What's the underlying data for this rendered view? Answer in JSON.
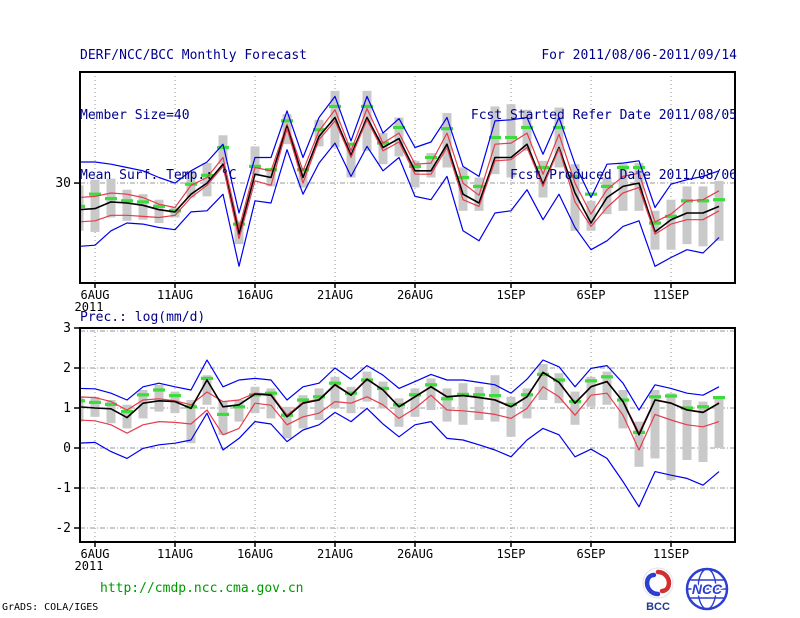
{
  "header": {
    "title": "DERF/NCC/BCC Monthly Forecast",
    "member_size": "Member Size=40",
    "temp_label": "Mean Surf. Temp.: °C",
    "for_period": "For 2011/08/06-2011/09/14",
    "fcst_started": "Fcst Started Refer Date 2011/08/05",
    "fcst_produced": "Fcst Produced Date 2011/08/06"
  },
  "footer": {
    "url": "http://cmdp.ncc.cma.gov.cn",
    "credit": "GrADS: COLA/IGES",
    "logos": [
      {
        "name": "bcc-logo",
        "text": "BCC"
      },
      {
        "name": "ncc-logo",
        "text": "NCC"
      }
    ]
  },
  "colors": {
    "blue": "#0000ee",
    "red": "#e73b4e",
    "black": "#000000",
    "green": "#3ddc3d",
    "bar": "#c9c9c9",
    "grid": "#999999",
    "frame": "#000000",
    "header_text": "#00008b",
    "url_text": "#009900",
    "logo_blue": "#2b3fd0",
    "logo_red": "#d03030"
  },
  "chart_data": [
    {
      "type": "line",
      "title": "Mean Surf. Temp.: °C",
      "ylim": [
        21,
        40
      ],
      "grid": true,
      "yticks": [
        {
          "v": 30,
          "label": "30"
        }
      ],
      "xticks": [
        {
          "d": 1,
          "label": "6AUG",
          "sub": "2011"
        },
        {
          "d": 6,
          "label": "11AUG"
        },
        {
          "d": 11,
          "label": "16AUG"
        },
        {
          "d": 16,
          "label": "21AUG"
        },
        {
          "d": 21,
          "label": "26AUG"
        },
        {
          "d": 27,
          "label": "1SEP"
        },
        {
          "d": 32,
          "label": "6SEP"
        },
        {
          "d": 37,
          "label": "11SEP"
        }
      ],
      "x_dates": [
        "5AUG",
        "6AUG",
        "7AUG",
        "8AUG",
        "9AUG",
        "10AUG",
        "11AUG",
        "12AUG",
        "13AUG",
        "14AUG",
        "15AUG",
        "16AUG",
        "17AUG",
        "18AUG",
        "19AUG",
        "20AUG",
        "21AUG",
        "22AUG",
        "23AUG",
        "24AUG",
        "25AUG",
        "26AUG",
        "27AUG",
        "28AUG",
        "29AUG",
        "30AUG",
        "31AUG",
        "1SEP",
        "2SEP",
        "3SEP",
        "4SEP",
        "5SEP",
        "6SEP",
        "7SEP",
        "8SEP",
        "9SEP",
        "10SEP",
        "11SEP",
        "12SEP",
        "13SEP",
        "14SEP"
      ],
      "series": [
        {
          "name": "envelope-max-blue",
          "color_key": "blue",
          "width": 1.2,
          "values": [
            31.9,
            31.9,
            31.7,
            31.4,
            31.1,
            30.5,
            30.0,
            31.1,
            31.9,
            33.5,
            27.3,
            32.3,
            32.3,
            36.5,
            32.3,
            35.9,
            37.8,
            33.8,
            37.8,
            34.5,
            35.8,
            33.2,
            33.7,
            35.9,
            31.5,
            30.6,
            35.6,
            35.7,
            35.9,
            32.6,
            35.9,
            31.7,
            28.7,
            31.7,
            31.8,
            32.0,
            27.8,
            29.9,
            30.3,
            30.6,
            31.1
          ]
        },
        {
          "name": "upper-spread-red",
          "color_key": "red",
          "width": 1.2,
          "values": [
            28.7,
            28.8,
            29.1,
            29.0,
            28.7,
            28.1,
            27.8,
            29.8,
            30.5,
            32.3,
            25.9,
            31.4,
            31.1,
            35.3,
            31.1,
            34.7,
            36.6,
            32.9,
            36.7,
            33.6,
            34.5,
            31.7,
            31.8,
            34.5,
            30.0,
            28.9,
            33.5,
            33.6,
            34.5,
            30.8,
            34.4,
            30.0,
            27.2,
            29.4,
            30.6,
            30.9,
            26.5,
            27.2,
            28.4,
            28.5,
            29.3
          ]
        },
        {
          "name": "ensemble-mean-black",
          "color_key": "black",
          "width": 1.6,
          "values": [
            27.6,
            27.7,
            28.3,
            28.2,
            28.0,
            27.6,
            27.4,
            29.0,
            30.0,
            31.7,
            25.4,
            30.8,
            30.5,
            35.1,
            30.5,
            34.2,
            35.9,
            32.5,
            35.9,
            33.2,
            34.0,
            31.1,
            31.1,
            33.5,
            29.0,
            28.2,
            32.3,
            32.3,
            33.5,
            29.9,
            33.2,
            29.1,
            26.4,
            28.7,
            29.7,
            30.0,
            25.6,
            26.7,
            27.3,
            27.3,
            27.9
          ]
        },
        {
          "name": "lower-spread-red",
          "color_key": "red",
          "width": 1.2,
          "values": [
            26.5,
            26.6,
            27.1,
            27.1,
            27.0,
            26.9,
            27.1,
            28.7,
            29.8,
            31.5,
            25.0,
            30.2,
            29.8,
            34.9,
            30.0,
            33.9,
            35.6,
            32.3,
            35.7,
            32.9,
            33.7,
            30.8,
            30.8,
            33.2,
            28.5,
            27.9,
            32.0,
            32.1,
            33.2,
            29.7,
            33.1,
            28.3,
            26.1,
            27.8,
            29.1,
            29.6,
            25.4,
            26.3,
            26.7,
            26.7,
            27.5
          ]
        },
        {
          "name": "envelope-min-blue",
          "color_key": "blue",
          "width": 1.2,
          "values": [
            24.3,
            24.4,
            25.7,
            26.4,
            26.3,
            26.0,
            25.8,
            27.4,
            27.5,
            29.0,
            22.5,
            28.4,
            28.2,
            33.0,
            29.0,
            31.8,
            33.6,
            30.6,
            33.3,
            31.1,
            32.3,
            28.8,
            28.5,
            30.6,
            25.7,
            24.8,
            27.3,
            27.5,
            29.4,
            26.7,
            29.0,
            26.0,
            24.0,
            24.8,
            26.1,
            26.6,
            22.5,
            23.3,
            24.0,
            23.7,
            25.1
          ]
        }
      ],
      "green_dash": {
        "name": "green-dash-overlay",
        "values": [
          27.9,
          29.0,
          28.6,
          28.4,
          28.3,
          27.9,
          27.5,
          29.9,
          30.7,
          33.2,
          26.3,
          31.5,
          31.2,
          35.6,
          31.2,
          34.8,
          36.9,
          33.5,
          36.9,
          33.6,
          35.0,
          31.5,
          32.3,
          34.9,
          30.5,
          29.7,
          34.1,
          34.1,
          35.0,
          31.4,
          35.0,
          30.6,
          29.0,
          29.7,
          31.4,
          31.4,
          26.4,
          27.0,
          28.4,
          28.4,
          28.5
        ]
      },
      "bars": {
        "top": [
          29.8,
          30.3,
          30.4,
          29.4,
          29.0,
          28.5,
          27.8,
          31.1,
          31.8,
          34.3,
          26.6,
          33.3,
          31.1,
          36.2,
          31.2,
          35.7,
          38.3,
          33.6,
          38.3,
          34.5,
          35.9,
          32.0,
          32.7,
          36.3,
          31.4,
          30.5,
          36.9,
          37.1,
          36.6,
          32.0,
          36.8,
          31.7,
          28.4,
          30.5,
          31.7,
          31.8,
          27.5,
          28.5,
          29.7,
          29.7,
          30.2
        ],
        "bot": [
          25.7,
          25.6,
          26.9,
          26.6,
          26.7,
          26.4,
          26.9,
          28.7,
          28.8,
          31.7,
          24.5,
          30.8,
          29.7,
          33.5,
          29.6,
          33.3,
          33.2,
          30.5,
          32.9,
          31.7,
          32.4,
          29.6,
          30.5,
          31.4,
          27.5,
          27.5,
          30.8,
          30.5,
          32.9,
          28.7,
          31.4,
          25.7,
          25.7,
          27.2,
          27.5,
          27.5,
          24.0,
          24.0,
          24.5,
          24.3,
          24.8
        ]
      }
    },
    {
      "type": "line",
      "title": "Prec.: log(mm/d)",
      "ylim": [
        -2.35,
        3
      ],
      "grid": true,
      "yticks": [
        {
          "v": 3,
          "label": "3"
        },
        {
          "v": 2,
          "label": "2"
        },
        {
          "v": 1,
          "label": "1"
        },
        {
          "v": 0,
          "label": "0"
        },
        {
          "v": -1,
          "label": "-1"
        },
        {
          "v": -2,
          "label": "-2"
        }
      ],
      "xticks": [
        {
          "d": 1,
          "label": "6AUG",
          "sub": "2011"
        },
        {
          "d": 6,
          "label": "11AUG"
        },
        {
          "d": 11,
          "label": "16AUG"
        },
        {
          "d": 16,
          "label": "21AUG"
        },
        {
          "d": 21,
          "label": "26AUG"
        },
        {
          "d": 27,
          "label": "1SEP"
        },
        {
          "d": 32,
          "label": "6SEP"
        },
        {
          "d": 37,
          "label": "11SEP"
        }
      ],
      "x_dates": [
        "5AUG",
        "6AUG",
        "7AUG",
        "8AUG",
        "9AUG",
        "10AUG",
        "11AUG",
        "12AUG",
        "13AUG",
        "14AUG",
        "15AUG",
        "16AUG",
        "17AUG",
        "18AUG",
        "19AUG",
        "20AUG",
        "21AUG",
        "22AUG",
        "23AUG",
        "24AUG",
        "25AUG",
        "26AUG",
        "27AUG",
        "28AUG",
        "29AUG",
        "30AUG",
        "31AUG",
        "1SEP",
        "2SEP",
        "3SEP",
        "4SEP",
        "5SEP",
        "6SEP",
        "7SEP",
        "8SEP",
        "9SEP",
        "10SEP",
        "11SEP",
        "12SEP",
        "13SEP",
        "14SEP"
      ],
      "series": [
        {
          "name": "envelope-max-blue",
          "color_key": "blue",
          "width": 1.2,
          "values": [
            1.49,
            1.48,
            1.37,
            1.2,
            1.53,
            1.62,
            1.53,
            1.45,
            2.2,
            1.53,
            1.7,
            1.74,
            1.7,
            1.2,
            1.53,
            1.62,
            2.0,
            1.72,
            2.06,
            1.82,
            1.49,
            1.66,
            1.84,
            1.7,
            1.7,
            1.64,
            1.58,
            1.37,
            1.72,
            2.2,
            2.03,
            1.53,
            1.99,
            2.06,
            1.62,
            0.95,
            1.58,
            1.49,
            1.37,
            1.32,
            1.53
          ]
        },
        {
          "name": "upper-spread-red",
          "color_key": "red",
          "width": 1.2,
          "values": [
            1.28,
            1.26,
            1.16,
            0.95,
            1.2,
            1.23,
            1.18,
            1.08,
            1.4,
            1.16,
            1.2,
            1.37,
            1.35,
            0.82,
            1.14,
            1.22,
            1.6,
            1.33,
            1.73,
            1.46,
            1.04,
            1.29,
            1.54,
            1.29,
            1.32,
            1.27,
            1.21,
            1.04,
            1.29,
            1.9,
            1.65,
            1.13,
            1.54,
            1.67,
            1.17,
            0.38,
            1.21,
            1.13,
            0.96,
            0.9,
            1.13
          ]
        },
        {
          "name": "ensemble-mean-black",
          "color_key": "black",
          "width": 1.6,
          "values": [
            1.03,
            1.0,
            0.98,
            0.76,
            1.12,
            1.18,
            1.16,
            0.99,
            1.7,
            1.03,
            1.08,
            1.35,
            1.32,
            0.78,
            1.12,
            1.2,
            1.58,
            1.32,
            1.72,
            1.45,
            1.03,
            1.28,
            1.53,
            1.28,
            1.31,
            1.26,
            1.2,
            1.03,
            1.28,
            1.89,
            1.64,
            1.12,
            1.53,
            1.66,
            1.16,
            0.33,
            1.2,
            1.12,
            0.95,
            0.89,
            1.12
          ]
        },
        {
          "name": "lower-spread-red",
          "color_key": "red",
          "width": 1.2,
          "values": [
            0.7,
            0.68,
            0.58,
            0.37,
            0.58,
            0.66,
            0.64,
            0.6,
            0.95,
            0.33,
            0.49,
            1.12,
            1.07,
            0.58,
            0.78,
            0.87,
            1.16,
            1.12,
            1.28,
            1.08,
            0.74,
            0.99,
            1.32,
            0.95,
            0.93,
            0.89,
            0.84,
            0.74,
            0.99,
            1.53,
            1.28,
            0.82,
            1.32,
            1.37,
            0.82,
            -0.05,
            0.84,
            0.7,
            0.58,
            0.53,
            0.66
          ]
        },
        {
          "name": "envelope-min-blue",
          "color_key": "blue",
          "width": 1.2,
          "values": [
            0.12,
            0.14,
            -0.09,
            -0.26,
            -0.01,
            0.08,
            0.12,
            0.2,
            0.87,
            -0.05,
            0.24,
            0.66,
            0.6,
            0.16,
            0.45,
            0.58,
            0.89,
            0.66,
            0.99,
            0.6,
            0.28,
            0.58,
            0.66,
            0.24,
            0.2,
            0.08,
            -0.05,
            -0.22,
            0.2,
            0.49,
            0.33,
            -0.22,
            -0.03,
            -0.26,
            -0.84,
            -1.47,
            -0.59,
            -0.68,
            -0.76,
            -0.93,
            -0.59
          ]
        }
      ],
      "green_dash": {
        "name": "green-dash-overlay",
        "values": [
          1.18,
          1.14,
          1.09,
          0.91,
          1.33,
          1.45,
          1.31,
          1.03,
          1.74,
          0.84,
          1.03,
          1.33,
          1.37,
          0.82,
          1.2,
          1.28,
          1.62,
          1.37,
          1.7,
          1.49,
          1.08,
          1.33,
          1.58,
          1.23,
          1.34,
          1.33,
          1.31,
          1.09,
          1.33,
          1.84,
          1.7,
          1.16,
          1.68,
          1.78,
          1.2,
          0.39,
          1.28,
          1.3,
          1.0,
          1.03,
          1.26
        ]
      },
      "bars": {
        "top": [
          1.28,
          1.28,
          1.2,
          1.08,
          1.45,
          1.58,
          1.41,
          1.2,
          1.82,
          1.16,
          1.2,
          1.53,
          1.49,
          1.03,
          1.32,
          1.49,
          1.78,
          1.53,
          1.91,
          1.66,
          1.24,
          1.49,
          1.74,
          1.49,
          1.62,
          1.53,
          1.82,
          1.28,
          1.49,
          2.1,
          1.87,
          1.41,
          1.78,
          1.91,
          1.45,
          0.66,
          1.45,
          1.37,
          1.2,
          1.16,
          1.28
        ],
        "bot": [
          0.66,
          0.78,
          0.62,
          0.49,
          0.74,
          0.91,
          0.87,
          0.12,
          1.08,
          0.33,
          0.66,
          0.87,
          0.74,
          0.24,
          0.49,
          0.7,
          0.99,
          0.87,
          1.16,
          0.99,
          0.53,
          0.78,
          0.95,
          0.66,
          0.58,
          0.7,
          0.66,
          0.28,
          0.74,
          1.2,
          1.12,
          0.58,
          1.03,
          1.08,
          0.49,
          -0.47,
          -0.26,
          -0.8,
          -0.3,
          -0.35,
          0.0
        ]
      }
    }
  ]
}
